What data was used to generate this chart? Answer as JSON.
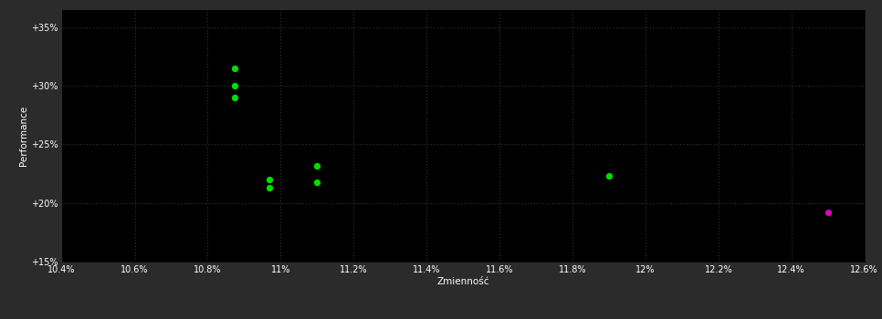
{
  "background_color": "#2b2b2b",
  "plot_bg_color": "#000000",
  "grid_color": "#555555",
  "text_color": "#ffffff",
  "xlabel": "Zmienność",
  "ylabel": "Performance",
  "xlim": [
    10.4,
    12.6
  ],
  "ylim": [
    15.0,
    36.5
  ],
  "xtick_values": [
    10.4,
    10.6,
    10.8,
    11.0,
    11.2,
    11.4,
    11.6,
    11.8,
    12.0,
    12.2,
    12.4,
    12.6
  ],
  "xtick_labels": [
    "10.4%",
    "10.6%",
    "10.8%",
    "11%",
    "11.2%",
    "11.4%",
    "11.6%",
    "11.8%",
    "12%",
    "12.2%",
    "12.4%",
    "12.6%"
  ],
  "ytick_values": [
    15,
    20,
    25,
    30,
    35
  ],
  "ytick_labels": [
    "+15%",
    "+20%",
    "+25%",
    "+30%",
    "+35%"
  ],
  "green_points": [
    [
      10.875,
      31.5
    ],
    [
      10.875,
      30.0
    ],
    [
      10.875,
      29.0
    ],
    [
      10.97,
      22.0
    ],
    [
      10.97,
      21.3
    ],
    [
      11.1,
      23.2
    ],
    [
      11.1,
      21.8
    ],
    [
      11.9,
      22.3
    ]
  ],
  "magenta_points": [
    [
      12.5,
      19.2
    ]
  ],
  "green_color": "#00dd00",
  "magenta_color": "#dd00bb",
  "marker_size": 28
}
